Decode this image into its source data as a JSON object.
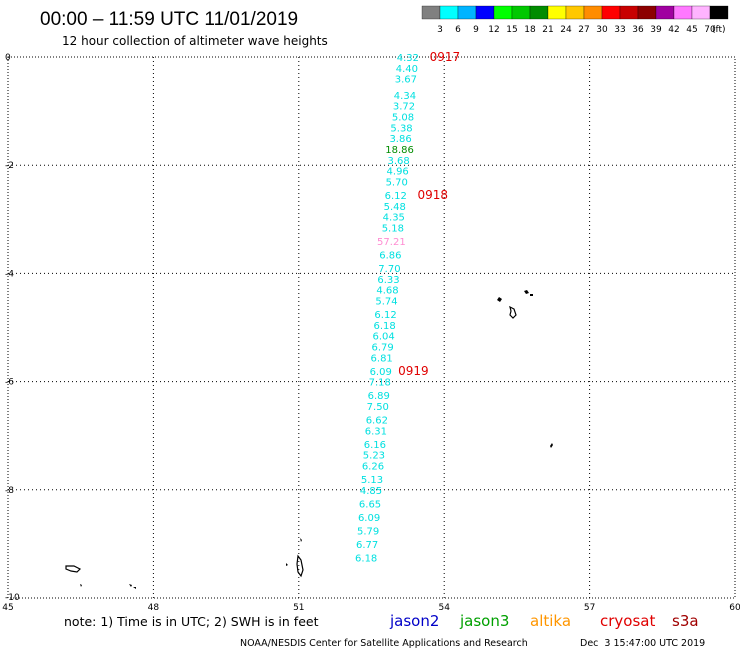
{
  "header": {
    "title": "00:00 – 11:59 UTC 11/01/2019",
    "subtitle": "12 hour collection of altimeter wave heights"
  },
  "colorbar": {
    "unit_label": "(ft)",
    "labels": [
      "3",
      "6",
      "9",
      "12",
      "15",
      "18",
      "21",
      "24",
      "27",
      "30",
      "33",
      "36",
      "39",
      "42",
      "45",
      "70"
    ],
    "colors": [
      "#808080",
      "#00ffff",
      "#00b4ff",
      "#0000ff",
      "#00ff00",
      "#00c800",
      "#008c00",
      "#ffff00",
      "#ffc800",
      "#ff8c00",
      "#ff0000",
      "#c80000",
      "#8c0000",
      "#a000a0",
      "#ff78ff",
      "#ffb4ff",
      "#000000"
    ]
  },
  "footer": {
    "note": "note: 1) Time is in UTC; 2) SWH is in feet",
    "legend": [
      {
        "label": "jason2",
        "color": "#0000c8"
      },
      {
        "label": "jason3",
        "color": "#00a000"
      },
      {
        "label": "altika",
        "color": "#ff9600"
      },
      {
        "label": "cryosat",
        "color": "#e00000"
      },
      {
        "label": "s3a",
        "color": "#a00000"
      }
    ],
    "credit": "NOAA/NESDIS Center for Satellite Applications and Research",
    "timestamp": "Dec  3 15:47:00 UTC 2019"
  },
  "chart_data": {
    "type": "scatter",
    "title": "00:00 – 11:59 UTC 11/01/2019",
    "xlim": [
      45,
      60
    ],
    "ylim": [
      -10,
      0
    ],
    "x_ticks": [
      "45",
      "48",
      "51",
      "54",
      "57",
      "60"
    ],
    "y_ticks": [
      "0",
      "-2",
      "-4",
      "-6",
      "-8",
      "-10"
    ],
    "grid": "dotted",
    "series": [
      {
        "name": "jason3",
        "points": [
          {
            "x": 53.25,
            "y": 0.0,
            "v": "4.32",
            "color": "#00e0e0"
          },
          {
            "x": 53.23,
            "y": -0.2,
            "v": "4.40",
            "color": "#00e0e0"
          },
          {
            "x": 53.21,
            "y": -0.4,
            "v": "3.67",
            "color": "#00e0e0"
          },
          {
            "x": 53.19,
            "y": -0.7,
            "v": "4.34",
            "color": "#00e0e0"
          },
          {
            "x": 53.17,
            "y": -0.9,
            "v": "3.72",
            "color": "#00e0e0"
          },
          {
            "x": 53.15,
            "y": -1.1,
            "v": "5.08",
            "color": "#00e0e0"
          },
          {
            "x": 53.12,
            "y": -1.3,
            "v": "5.38",
            "color": "#00e0e0"
          },
          {
            "x": 53.1,
            "y": -1.5,
            "v": "3.86",
            "color": "#00e0e0"
          },
          {
            "x": 53.08,
            "y": -1.7,
            "v": "18.86",
            "color": "#008c00"
          },
          {
            "x": 53.06,
            "y": -1.9,
            "v": "3.68",
            "color": "#00e0e0"
          },
          {
            "x": 53.04,
            "y": -2.1,
            "v": "4.96",
            "color": "#00e0e0"
          },
          {
            "x": 53.02,
            "y": -2.3,
            "v": "5.70",
            "color": "#00e0e0"
          },
          {
            "x": 53.0,
            "y": -2.55,
            "v": "6.12",
            "color": "#00e0e0"
          },
          {
            "x": 52.98,
            "y": -2.75,
            "v": "5.48",
            "color": "#00e0e0"
          },
          {
            "x": 52.96,
            "y": -2.95,
            "v": "4.35",
            "color": "#00e0e0"
          },
          {
            "x": 52.94,
            "y": -3.15,
            "v": "5.18",
            "color": "#00e0e0"
          },
          {
            "x": 52.91,
            "y": -3.4,
            "v": "57.21",
            "color": "#ff8cd2"
          },
          {
            "x": 52.89,
            "y": -3.65,
            "v": "6.86",
            "color": "#00e0e0"
          },
          {
            "x": 52.87,
            "y": -3.9,
            "v": "7.70",
            "color": "#00e0e0"
          },
          {
            "x": 52.85,
            "y": -4.1,
            "v": "6.33",
            "color": "#00e0e0"
          },
          {
            "x": 52.83,
            "y": -4.3,
            "v": "4.68",
            "color": "#00e0e0"
          },
          {
            "x": 52.81,
            "y": -4.5,
            "v": "5.74",
            "color": "#00e0e0"
          },
          {
            "x": 52.79,
            "y": -4.75,
            "v": "6.12",
            "color": "#00e0e0"
          },
          {
            "x": 52.77,
            "y": -4.95,
            "v": "6.18",
            "color": "#00e0e0"
          },
          {
            "x": 52.75,
            "y": -5.15,
            "v": "6.04",
            "color": "#00e0e0"
          },
          {
            "x": 52.73,
            "y": -5.35,
            "v": "6.79",
            "color": "#00e0e0"
          },
          {
            "x": 52.71,
            "y": -5.55,
            "v": "6.81",
            "color": "#00e0e0"
          },
          {
            "x": 52.69,
            "y": -5.8,
            "v": "6.09",
            "color": "#00e0e0"
          },
          {
            "x": 52.67,
            "y": -6.0,
            "v": "7.18",
            "color": "#00e0e0"
          },
          {
            "x": 52.65,
            "y": -6.25,
            "v": "6.89",
            "color": "#00e0e0"
          },
          {
            "x": 52.63,
            "y": -6.45,
            "v": "7.50",
            "color": "#00e0e0"
          },
          {
            "x": 52.61,
            "y": -6.7,
            "v": "6.62",
            "color": "#00e0e0"
          },
          {
            "x": 52.59,
            "y": -6.9,
            "v": "6.31",
            "color": "#00e0e0"
          },
          {
            "x": 52.57,
            "y": -7.15,
            "v": "6.16",
            "color": "#00e0e0"
          },
          {
            "x": 52.55,
            "y": -7.35,
            "v": "5.23",
            "color": "#00e0e0"
          },
          {
            "x": 52.53,
            "y": -7.55,
            "v": "6.26",
            "color": "#00e0e0"
          },
          {
            "x": 52.51,
            "y": -7.8,
            "v": "5.13",
            "color": "#00e0e0"
          },
          {
            "x": 52.49,
            "y": -8.0,
            "v": "4.85",
            "color": "#00e0e0"
          },
          {
            "x": 52.47,
            "y": -8.25,
            "v": "6.65",
            "color": "#00e0e0"
          },
          {
            "x": 52.45,
            "y": -8.5,
            "v": "6.09",
            "color": "#00e0e0"
          },
          {
            "x": 52.43,
            "y": -8.75,
            "v": "5.79",
            "color": "#00e0e0"
          },
          {
            "x": 52.41,
            "y": -9.0,
            "v": "6.77",
            "color": "#00e0e0"
          },
          {
            "x": 52.39,
            "y": -9.25,
            "v": "6.18",
            "color": "#00e0e0"
          }
        ]
      }
    ],
    "time_marks": [
      {
        "label": "0917",
        "x": 53.7,
        "y": 0.0,
        "color": "#e00000"
      },
      {
        "label": "0918",
        "x": 53.45,
        "y": -2.55,
        "color": "#e00000"
      },
      {
        "label": "0919",
        "x": 53.05,
        "y": -5.8,
        "color": "#e00000"
      }
    ]
  }
}
